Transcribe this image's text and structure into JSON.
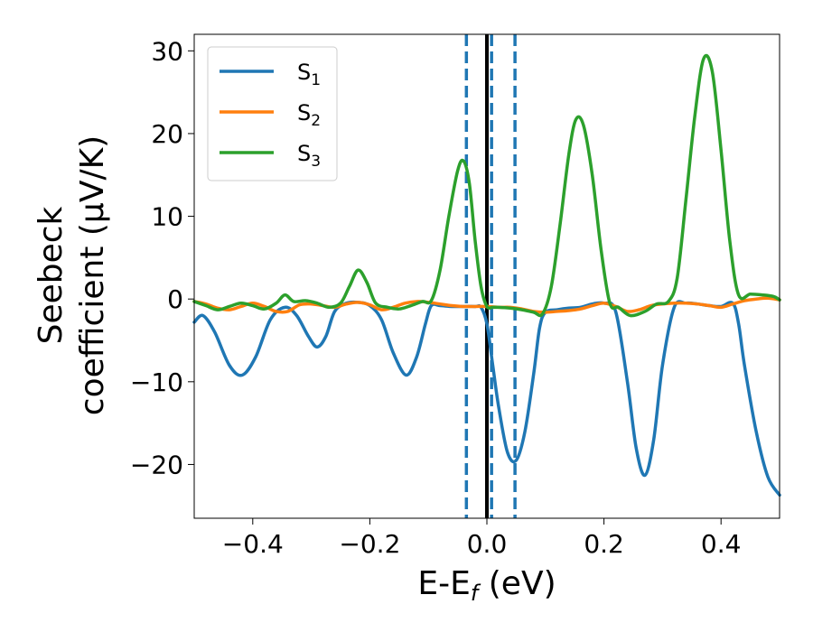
{
  "chart_data": {
    "type": "line",
    "xlabel": {
      "main": "E-E",
      "sub": "f",
      "unit": " (eV)"
    },
    "ylabel": {
      "line1": "Seebeck",
      "line2": "coefficient  (μV/K)"
    },
    "xlim": [
      -0.5,
      0.5
    ],
    "ylim": [
      -26.5,
      32
    ],
    "xticks": [
      -0.4,
      -0.2,
      0.0,
      0.2,
      0.4
    ],
    "xtick_labels": [
      "−0.4",
      "−0.2",
      "0.0",
      "0.2",
      "0.4"
    ],
    "yticks": [
      -20,
      -10,
      0,
      10,
      20,
      30
    ],
    "ytick_labels": [
      "−20",
      "−10",
      "0",
      "10",
      "20",
      "30"
    ],
    "grid": false,
    "legend_position": "top-left",
    "vertical_lines": [
      {
        "x": 0.0,
        "style": "solid",
        "color": "#000000"
      },
      {
        "x": -0.035,
        "style": "dashed",
        "color": "#1f77b4"
      },
      {
        "x": 0.008,
        "style": "dashed",
        "color": "#1f77b4"
      },
      {
        "x": 0.048,
        "style": "dashed",
        "color": "#1f77b4"
      }
    ],
    "series": [
      {
        "name": "S",
        "name_sub": "1",
        "color": "#1f77b4",
        "x": [
          -0.5,
          -0.485,
          -0.465,
          -0.44,
          -0.418,
          -0.395,
          -0.37,
          -0.345,
          -0.325,
          -0.305,
          -0.29,
          -0.275,
          -0.26,
          -0.24,
          -0.22,
          -0.2,
          -0.18,
          -0.16,
          -0.138,
          -0.12,
          -0.105,
          -0.095,
          -0.08,
          -0.06,
          -0.04,
          -0.02,
          -0.01,
          0.0,
          0.01,
          0.02,
          0.035,
          0.05,
          0.065,
          0.08,
          0.09,
          0.1,
          0.12,
          0.14,
          0.16,
          0.18,
          0.2,
          0.22,
          0.24,
          0.255,
          0.27,
          0.285,
          0.3,
          0.32,
          0.34,
          0.36,
          0.38,
          0.4,
          0.42,
          0.43,
          0.44,
          0.46,
          0.48,
          0.5
        ],
        "y": [
          -2.8,
          -2.0,
          -4.0,
          -8.0,
          -9.2,
          -7.0,
          -2.5,
          -1.0,
          -2.0,
          -4.5,
          -5.8,
          -4.5,
          -1.5,
          -0.5,
          -0.4,
          -0.8,
          -2.5,
          -6.5,
          -9.2,
          -7.0,
          -3.0,
          -0.8,
          -0.8,
          -0.9,
          -0.9,
          -0.9,
          -1.0,
          -3.0,
          -8.0,
          -13.0,
          -18.5,
          -19.5,
          -16.0,
          -9.0,
          -3.5,
          -1.6,
          -1.3,
          -1.1,
          -1.0,
          -0.6,
          -0.5,
          -1.5,
          -10.0,
          -18.0,
          -21.3,
          -17.0,
          -8.0,
          -1.0,
          -0.5,
          -0.6,
          -0.8,
          -0.9,
          -0.5,
          -3.0,
          -8.0,
          -16.0,
          -21.5,
          -23.7
        ]
      },
      {
        "name": "S",
        "name_sub": "2",
        "color": "#ff7f0e",
        "x": [
          -0.5,
          -0.48,
          -0.46,
          -0.44,
          -0.42,
          -0.4,
          -0.38,
          -0.36,
          -0.34,
          -0.32,
          -0.3,
          -0.28,
          -0.26,
          -0.24,
          -0.22,
          -0.2,
          -0.18,
          -0.16,
          -0.14,
          -0.12,
          -0.1,
          -0.08,
          -0.06,
          -0.04,
          -0.02,
          0.0,
          0.02,
          0.04,
          0.06,
          0.08,
          0.1,
          0.12,
          0.14,
          0.16,
          0.18,
          0.2,
          0.22,
          0.24,
          0.26,
          0.28,
          0.3,
          0.32,
          0.34,
          0.36,
          0.38,
          0.4,
          0.42,
          0.44,
          0.46,
          0.48,
          0.5
        ],
        "y": [
          -0.3,
          -0.6,
          -1.1,
          -1.3,
          -0.9,
          -0.5,
          -0.9,
          -1.5,
          -1.5,
          -0.7,
          -0.6,
          -0.8,
          -1.0,
          -0.6,
          -0.4,
          -0.7,
          -1.3,
          -1.0,
          -0.5,
          -0.3,
          -0.4,
          -0.6,
          -0.8,
          -0.9,
          -0.9,
          -0.9,
          -1.0,
          -1.0,
          -1.2,
          -1.5,
          -1.6,
          -1.5,
          -1.4,
          -1.2,
          -0.8,
          -0.5,
          -0.9,
          -1.5,
          -1.3,
          -0.8,
          -0.6,
          -0.5,
          -0.5,
          -0.6,
          -0.8,
          -1.0,
          -0.6,
          -0.2,
          0.0,
          0.1,
          -0.1
        ]
      },
      {
        "name": "S",
        "name_sub": "3",
        "color": "#2ca02c",
        "x": [
          -0.5,
          -0.48,
          -0.46,
          -0.44,
          -0.42,
          -0.4,
          -0.38,
          -0.36,
          -0.345,
          -0.33,
          -0.31,
          -0.29,
          -0.27,
          -0.25,
          -0.235,
          -0.22,
          -0.205,
          -0.19,
          -0.17,
          -0.15,
          -0.13,
          -0.11,
          -0.095,
          -0.08,
          -0.065,
          -0.05,
          -0.04,
          -0.03,
          -0.02,
          -0.01,
          0.0,
          0.01,
          0.02,
          0.04,
          0.06,
          0.08,
          0.095,
          0.11,
          0.125,
          0.14,
          0.152,
          0.165,
          0.18,
          0.195,
          0.21,
          0.225,
          0.245,
          0.27,
          0.29,
          0.31,
          0.325,
          0.34,
          0.355,
          0.37,
          0.385,
          0.4,
          0.415,
          0.43,
          0.45,
          0.47,
          0.49,
          0.5
        ],
        "y": [
          -0.3,
          -0.8,
          -1.3,
          -0.9,
          -0.5,
          -0.8,
          -1.2,
          -0.5,
          0.5,
          -0.3,
          -0.2,
          -0.5,
          -1.0,
          -0.5,
          1.5,
          3.5,
          2.0,
          -0.5,
          -1.0,
          -1.2,
          -0.8,
          -0.3,
          -0.2,
          3.5,
          10.0,
          15.5,
          16.7,
          14.0,
          7.0,
          1.5,
          -0.9,
          -1.0,
          -1.0,
          -1.1,
          -1.3,
          -1.6,
          -1.8,
          1.5,
          9.0,
          17.5,
          21.7,
          21.0,
          15.0,
          6.0,
          -0.5,
          -1.0,
          -2.0,
          -1.5,
          -0.6,
          -0.3,
          2.5,
          12.0,
          22.0,
          29.0,
          27.5,
          18.0,
          7.0,
          0.5,
          0.6,
          0.5,
          0.3,
          -0.1
        ]
      }
    ]
  }
}
